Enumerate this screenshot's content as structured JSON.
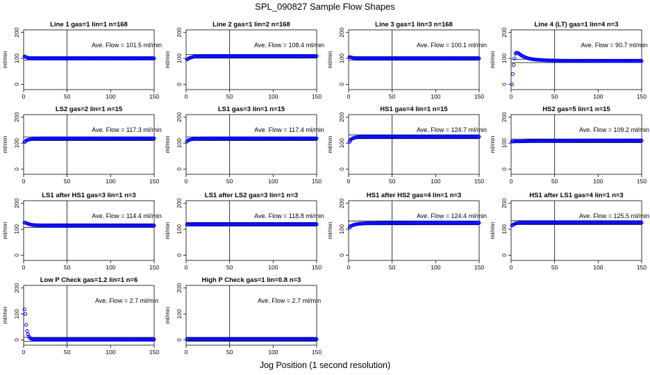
{
  "figure": {
    "title": "SPL_090827  Sample Flow Shapes",
    "xlabel": "Jog Position (1 second resolution)"
  },
  "chart_data": [
    {
      "type": "scatter",
      "title": "Line 1 gas=1 lin=1 n=168",
      "ylabel": "ml/min",
      "annotation": "Ave. Flow =  101.5  ml/min",
      "xlim": [
        0,
        150
      ],
      "ylim": [
        -20,
        210
      ],
      "xticks": [
        0,
        50,
        100,
        150
      ],
      "yticks": [
        0,
        100,
        200
      ],
      "ref_lines_y": [
        94,
        107
      ],
      "color": "#0000ff",
      "series": [
        {
          "x": [
            1,
            3,
            5,
            10,
            20,
            40,
            80,
            120,
            150
          ],
          "y": [
            108,
            105,
            102,
            100,
            100,
            100,
            100,
            100,
            100
          ]
        }
      ]
    },
    {
      "type": "scatter",
      "title": "Line 2 gas=1 lin=2 n=168",
      "ylabel": "ml/min",
      "annotation": "Ave. Flow =  108.4  ml/min",
      "xlim": [
        0,
        150
      ],
      "ylim": [
        -20,
        210
      ],
      "xticks": [
        0,
        50,
        100,
        150
      ],
      "yticks": [
        0,
        100,
        200
      ],
      "ref_lines_y": [
        101,
        115
      ],
      "color": "#0000ff",
      "series": [
        {
          "x": [
            1,
            2,
            3,
            5,
            8,
            10,
            20,
            40,
            80,
            120,
            150
          ],
          "y": [
            96,
            98,
            100,
            103,
            106,
            108,
            109,
            109,
            109,
            109,
            109
          ]
        }
      ]
    },
    {
      "type": "scatter",
      "title": "Line 3 gas=1 lin=3 n=168",
      "ylabel": "ml/min",
      "annotation": "Ave. Flow =  100.1  ml/min",
      "xlim": [
        0,
        150
      ],
      "ylim": [
        -20,
        210
      ],
      "xticks": [
        0,
        50,
        100,
        150
      ],
      "yticks": [
        0,
        100,
        200
      ],
      "ref_lines_y": [
        93,
        107
      ],
      "color": "#0000ff",
      "series": [
        {
          "x": [
            1,
            3,
            5,
            10,
            20,
            40,
            80,
            120,
            150
          ],
          "y": [
            105,
            104,
            102,
            100,
            100,
            100,
            100,
            100,
            100
          ]
        }
      ]
    },
    {
      "type": "scatter",
      "title": "Line 4 (LT) gas=1 lin=4 n=3",
      "ylabel": "ml/min",
      "annotation": "Ave. Flow =  90.7  ml/min",
      "xlim": [
        0,
        150
      ],
      "ylim": [
        -20,
        210
      ],
      "xticks": [
        0,
        50,
        100,
        150
      ],
      "yticks": [
        0,
        100,
        200
      ],
      "ref_lines_y": [
        84,
        97
      ],
      "color": "#0000ff",
      "series": [
        {
          "x": [
            1,
            2,
            3,
            4,
            5,
            6,
            8,
            10,
            12,
            15,
            20,
            25,
            30,
            40,
            60,
            100,
            150
          ],
          "y": [
            0,
            40,
            75,
            100,
            118,
            122,
            121,
            116,
            111,
            106,
            100,
            97,
            95,
            93,
            91,
            90,
            90
          ]
        }
      ]
    },
    {
      "type": "scatter",
      "title": "LS2 gas=2 lin=1 n=15",
      "ylabel": "ml/min",
      "annotation": "Ave. Flow =  117.3  ml/min",
      "xlim": [
        0,
        150
      ],
      "ylim": [
        -20,
        210
      ],
      "xticks": [
        0,
        50,
        100,
        150
      ],
      "yticks": [
        0,
        100,
        200
      ],
      "ref_lines_y": [
        110,
        124
      ],
      "color": "#0000ff",
      "series": [
        {
          "x": [
            1,
            2,
            3,
            5,
            8,
            12,
            20,
            40,
            80,
            120,
            150
          ],
          "y": [
            104,
            107,
            110,
            113,
            115,
            117,
            118,
            118,
            118,
            118,
            118
          ]
        }
      ]
    },
    {
      "type": "scatter",
      "title": "LS1 gas=3 lin=1 n=15",
      "ylabel": "ml/min",
      "annotation": "Ave. Flow =  117.4  ml/min",
      "xlim": [
        0,
        150
      ],
      "ylim": [
        -20,
        210
      ],
      "xticks": [
        0,
        50,
        100,
        150
      ],
      "yticks": [
        0,
        100,
        200
      ],
      "ref_lines_y": [
        110,
        124
      ],
      "color": "#0000ff",
      "series": [
        {
          "x": [
            1,
            2,
            3,
            5,
            8,
            12,
            20,
            40,
            80,
            120,
            150
          ],
          "y": [
            106,
            109,
            112,
            114,
            116,
            117,
            118,
            118,
            118,
            118,
            118
          ]
        }
      ]
    },
    {
      "type": "scatter",
      "title": "HS1 gas=4 lin=1 n=15",
      "ylabel": "ml/min",
      "annotation": "Ave. Flow =  124.7  ml/min",
      "xlim": [
        0,
        150
      ],
      "ylim": [
        -20,
        210
      ],
      "xticks": [
        0,
        50,
        100,
        150
      ],
      "yticks": [
        0,
        100,
        200
      ],
      "ref_lines_y": [
        117,
        132
      ],
      "color": "#0000ff",
      "series": [
        {
          "x": [
            1,
            2,
            3,
            5,
            8,
            12,
            20,
            40,
            80,
            120,
            150
          ],
          "y": [
            104,
            110,
            115,
            119,
            122,
            124,
            125,
            125,
            125,
            125,
            125
          ]
        }
      ]
    },
    {
      "type": "scatter",
      "title": "HS2 gas=5 lin=1 n=15",
      "ylabel": "ml/min",
      "annotation": "Ave. Flow =  109.2  ml/min",
      "xlim": [
        0,
        150
      ],
      "ylim": [
        -20,
        210
      ],
      "xticks": [
        0,
        50,
        100,
        150
      ],
      "yticks": [
        0,
        100,
        200
      ],
      "ref_lines_y": [
        102,
        116
      ],
      "color": "#0000ff",
      "series": [
        {
          "x": [
            1,
            5,
            10,
            20,
            40,
            60,
            80,
            100,
            120,
            150
          ],
          "y": [
            106,
            107,
            107,
            108,
            109,
            109,
            110,
            110,
            110,
            110
          ]
        }
      ]
    },
    {
      "type": "scatter",
      "title": "LS1 after HS1 gas=3 lin=1 n=3",
      "ylabel": "ml/min",
      "annotation": "Ave. Flow =  114.4  ml/min",
      "xlim": [
        0,
        150
      ],
      "ylim": [
        -20,
        210
      ],
      "xticks": [
        0,
        50,
        100,
        150
      ],
      "yticks": [
        0,
        100,
        200
      ],
      "ref_lines_y": [
        107,
        121
      ],
      "color": "#0000ff",
      "series": [
        {
          "x": [
            1,
            3,
            5,
            8,
            12,
            20,
            40,
            80,
            120,
            150
          ],
          "y": [
            126,
            124,
            121,
            118,
            116,
            115,
            114,
            114,
            114,
            114
          ]
        }
      ]
    },
    {
      "type": "scatter",
      "title": "LS1 after LS2 gas=3 lin=1 n=3",
      "ylabel": "ml/min",
      "annotation": "Ave. Flow =  118.8  ml/min",
      "xlim": [
        0,
        150
      ],
      "ylim": [
        -20,
        210
      ],
      "xticks": [
        0,
        50,
        100,
        150
      ],
      "yticks": [
        0,
        100,
        200
      ],
      "ref_lines_y": [
        112,
        126
      ],
      "color": "#0000ff",
      "series": [
        {
          "x": [
            1,
            5,
            10,
            20,
            40,
            80,
            120,
            150
          ],
          "y": [
            118,
            118,
            119,
            119,
            119,
            119,
            119,
            119
          ]
        }
      ]
    },
    {
      "type": "scatter",
      "title": "HS1 after HS2 gas=4 lin=1 n=3",
      "ylabel": "ml/min",
      "annotation": "Ave. Flow =  124.4  ml/min",
      "xlim": [
        0,
        150
      ],
      "ylim": [
        -20,
        210
      ],
      "xticks": [
        0,
        50,
        100,
        150
      ],
      "yticks": [
        0,
        100,
        200
      ],
      "ref_lines_y": [
        117,
        132
      ],
      "color": "#0000ff",
      "series": [
        {
          "x": [
            1,
            2,
            3,
            5,
            8,
            12,
            20,
            40,
            80,
            120,
            150
          ],
          "y": [
            106,
            110,
            113,
            116,
            119,
            121,
            123,
            124,
            125,
            125,
            125
          ]
        }
      ]
    },
    {
      "type": "scatter",
      "title": "HS1 after LS1 gas=4 lin=1 n=3",
      "ylabel": "ml/min",
      "annotation": "Ave. Flow =  125.5  ml/min",
      "xlim": [
        0,
        150
      ],
      "ylim": [
        -20,
        210
      ],
      "xticks": [
        0,
        50,
        100,
        150
      ],
      "yticks": [
        0,
        100,
        200
      ],
      "ref_lines_y": [
        118,
        133
      ],
      "color": "#0000ff",
      "series": [
        {
          "x": [
            1,
            2,
            3,
            5,
            8,
            12,
            20,
            40,
            80,
            120,
            150
          ],
          "y": [
            114,
            117,
            119,
            122,
            124,
            125,
            126,
            126,
            126,
            126,
            126
          ]
        }
      ]
    },
    {
      "type": "scatter",
      "title": "Low P Check gas=1.2 lin=1 n=6",
      "ylabel": "ml/min",
      "annotation": "Ave. Flow =  2.7  ml/min",
      "xlim": [
        0,
        150
      ],
      "ylim": [
        -20,
        210
      ],
      "xticks": [
        0,
        50,
        100,
        150
      ],
      "yticks": [
        0,
        100,
        200
      ],
      "ref_lines_y": [
        -5,
        10
      ],
      "color": "#0000ff",
      "series": [
        {
          "x": [
            1,
            2,
            3,
            4,
            5,
            6,
            7,
            8,
            9,
            10,
            12,
            15,
            20,
            40,
            80,
            120,
            150
          ],
          "y": [
            118,
            100,
            58,
            35,
            22,
            14,
            9,
            6,
            4,
            3,
            2,
            2,
            2,
            2,
            2,
            2,
            2
          ]
        }
      ]
    },
    {
      "type": "scatter",
      "title": "High P Check gas=1 lin=0.8 n=3",
      "ylabel": "ml/min",
      "annotation": "Ave. Flow =  2.7  ml/min",
      "xlim": [
        0,
        150
      ],
      "ylim": [
        -20,
        210
      ],
      "xticks": [
        0,
        50,
        100,
        150
      ],
      "yticks": [
        0,
        100,
        200
      ],
      "ref_lines_y": [
        -5,
        10
      ],
      "color": "#0000ff",
      "series": [
        {
          "x": [
            1,
            5,
            10,
            20,
            40,
            80,
            120,
            150
          ],
          "y": [
            3,
            3,
            3,
            3,
            3,
            3,
            3,
            3
          ]
        }
      ]
    }
  ]
}
